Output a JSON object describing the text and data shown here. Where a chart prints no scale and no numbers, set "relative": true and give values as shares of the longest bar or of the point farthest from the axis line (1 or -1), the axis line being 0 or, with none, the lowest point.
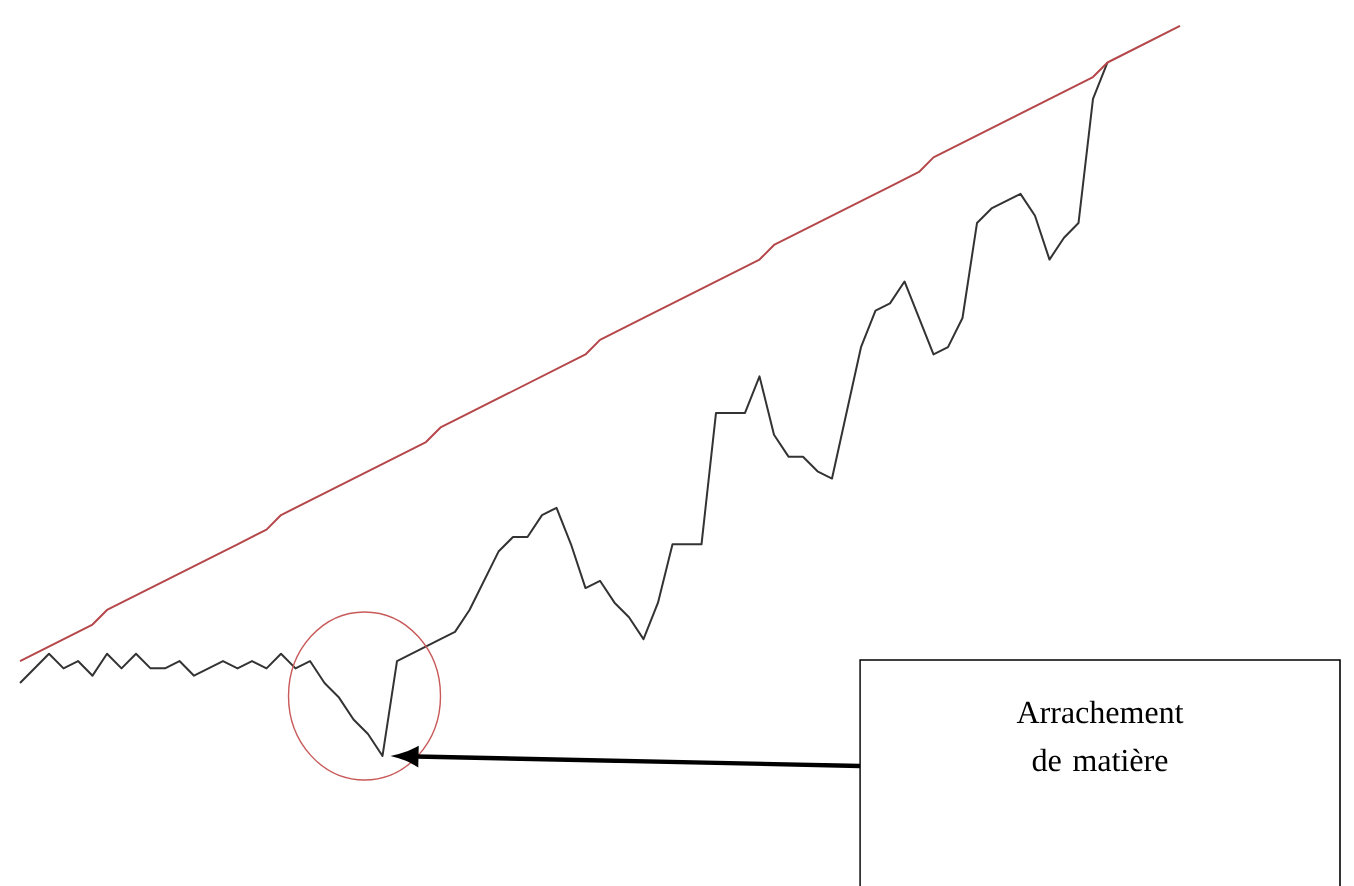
{
  "chart_data": {
    "type": "line",
    "relative": true,
    "categories": [
      null,
      null,
      null,
      null,
      null,
      null,
      null,
      null,
      null,
      null,
      null,
      null,
      null,
      null,
      null,
      null,
      null,
      null,
      null,
      null,
      null,
      null,
      null,
      null,
      null,
      null,
      null,
      null,
      null,
      null,
      null,
      null,
      null,
      null,
      null,
      null,
      null,
      null,
      null,
      null,
      null,
      null,
      null,
      null,
      null,
      null,
      null,
      null,
      null,
      null,
      null,
      null,
      null,
      null,
      null,
      null,
      null,
      null,
      null,
      null,
      null,
      null,
      null,
      null,
      null,
      null,
      null,
      null,
      null,
      null,
      null,
      null,
      null,
      null,
      null,
      null,
      null,
      null,
      null,
      null,
      null
    ],
    "series": [
      {
        "color": "#333333",
        "values": [
          0.1,
          0.12,
          0.14,
          0.12,
          0.13,
          0.11,
          0.14,
          0.12,
          0.14,
          0.12,
          0.12,
          0.13,
          0.11,
          0.12,
          0.13,
          0.12,
          0.13,
          0.12,
          0.14,
          0.12,
          0.13,
          0.1,
          0.08,
          0.05,
          0.03,
          0.0,
          0.13,
          0.14,
          0.15,
          0.16,
          0.17,
          0.2,
          0.24,
          0.28,
          0.3,
          0.3,
          0.33,
          0.34,
          0.29,
          0.23,
          0.24,
          0.21,
          0.19,
          0.16,
          0.21,
          0.29,
          0.29,
          0.29,
          0.47,
          0.47,
          0.47,
          0.52,
          0.44,
          0.41,
          0.41,
          0.39,
          0.38,
          0.47,
          0.56,
          0.61,
          0.62,
          0.65,
          0.6,
          0.55,
          0.56,
          0.6,
          0.73,
          0.75,
          0.76,
          0.77,
          0.74,
          0.68,
          0.71,
          0.73,
          0.9,
          0.95,
          null,
          null,
          null,
          null,
          null
        ]
      },
      {
        "color": "#b5474a",
        "values": [
          0.13,
          0.14,
          0.15,
          0.16,
          0.17,
          0.18,
          0.2,
          0.21,
          0.22,
          0.23,
          0.24,
          0.25,
          0.26,
          0.27,
          0.28,
          0.29,
          0.3,
          0.31,
          0.33,
          0.34,
          0.35,
          0.36,
          0.37,
          0.38,
          0.39,
          0.4,
          0.41,
          0.42,
          0.43,
          0.45,
          0.46,
          0.47,
          0.48,
          0.49,
          0.5,
          0.51,
          0.52,
          0.53,
          0.54,
          0.55,
          0.57,
          0.58,
          0.59,
          0.6,
          0.61,
          0.62,
          0.63,
          0.64,
          0.65,
          0.66,
          0.67,
          0.68,
          0.7,
          0.71,
          0.72,
          0.73,
          0.74,
          0.75,
          0.76,
          0.77,
          0.78,
          0.79,
          0.8,
          0.82,
          0.83,
          0.84,
          0.85,
          0.86,
          0.87,
          0.88,
          0.89,
          0.9,
          0.91,
          0.92,
          0.93,
          0.95,
          0.96,
          0.97,
          0.98,
          0.99,
          1.0
        ]
      }
    ],
    "annotations": [
      "Arrachement de matière"
    ]
  }
}
